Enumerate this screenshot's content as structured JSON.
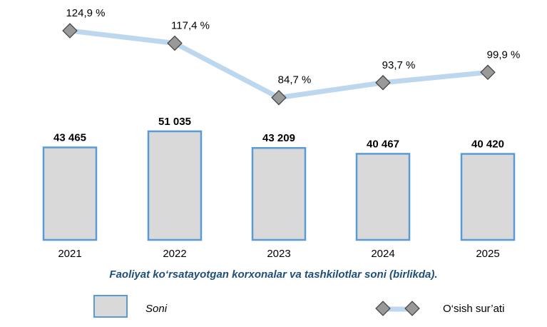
{
  "chart_data": {
    "type": "bar+line",
    "title": "Faoliyat ko‘rsatayotgan korxonalar va tashkilotlar soni (birlikda).",
    "categories": [
      "2021",
      "2022",
      "2023",
      "2024",
      "2025"
    ],
    "series": [
      {
        "name": "Soni",
        "type": "bar",
        "values": [
          43465,
          51035,
          43209,
          40467,
          40420
        ],
        "labels": [
          "43 465",
          "51 035",
          "43 209",
          "40 467",
          "40 420"
        ],
        "fill": "#d9d9d9",
        "stroke": "#5b9bd5"
      },
      {
        "name": "O‘sish sur’ati",
        "type": "line",
        "values": [
          124.9,
          117.4,
          84.7,
          93.7,
          99.9
        ],
        "labels": [
          "124,9 %",
          "117,4 %",
          "84,7 %",
          "93,7 %",
          "99,9 %"
        ],
        "line_color": "#bdd7ee",
        "marker_fill": "#999999",
        "marker_stroke": "#404040"
      }
    ],
    "legend_position": "bottom",
    "grid": false
  }
}
